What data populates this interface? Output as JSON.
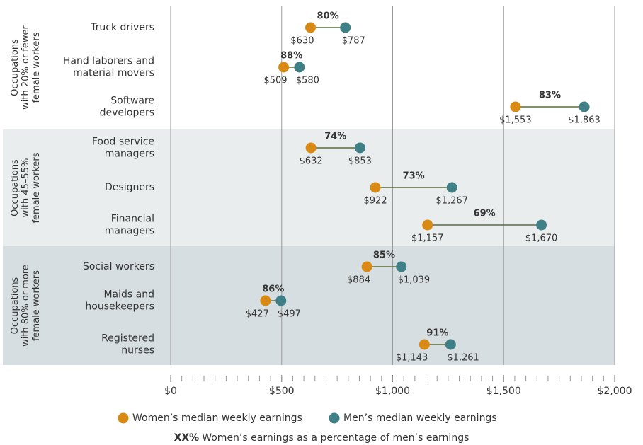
{
  "chart_data": {
    "type": "dumbbell",
    "categories": [
      [
        "Truck drivers"
      ],
      [
        "Hand laborers and",
        "material movers"
      ],
      [
        "Software",
        "developers"
      ],
      [
        "Food service",
        "managers"
      ],
      [
        "Designers"
      ],
      [
        "Financial",
        "managers"
      ],
      [
        "Social workers"
      ],
      [
        "Maids and",
        "housekeepers"
      ],
      [
        "Registered",
        "nurses"
      ]
    ],
    "groups": [
      {
        "label": [
          "Occupations",
          "with 20% or fewer",
          "female workers"
        ],
        "color": "#ffffff"
      },
      {
        "label": [
          "Occupations",
          "with 45–55%",
          "female workers"
        ],
        "color": "#e9edee"
      },
      {
        "label": [
          "Occupations",
          "with 80% or more",
          "female workers"
        ],
        "color": "#d6dee1"
      }
    ],
    "series": [
      {
        "name": "Women’s median weekly earnings",
        "color": "#d98a14",
        "values": [
          630,
          509,
          1553,
          632,
          922,
          1157,
          884,
          427,
          1143
        ],
        "value_labels": [
          "$630",
          "$509",
          "$1,553",
          "$632",
          "$922",
          "$1,157",
          "$884",
          "$427",
          "$1,143"
        ]
      },
      {
        "name": "Men’s median weekly earnings",
        "color": "#3f7f86",
        "values": [
          787,
          580,
          1863,
          853,
          1267,
          1670,
          1039,
          497,
          1261
        ],
        "value_labels": [
          "$787",
          "$580",
          "$1,863",
          "$853",
          "$1,267",
          "$1,670",
          "$1,039",
          "$497",
          "$1,261"
        ]
      }
    ],
    "ratio_labels": [
      "80%",
      "88%",
      "83%",
      "74%",
      "73%",
      "69%",
      "85%",
      "86%",
      "91%"
    ],
    "xlim": [
      0,
      2000
    ],
    "xticks": [
      {
        "value": 0,
        "label": "$0"
      },
      {
        "value": 500,
        "label": "$500"
      },
      {
        "value": 1000,
        "label": "$1,000"
      },
      {
        "value": 1500,
        "label": "$1,500"
      },
      {
        "value": 2000,
        "label": "$2,000"
      }
    ],
    "minor_tick_step": 50,
    "grid": true,
    "note_key": "XX%",
    "note": "Women’s earnings as a percentage of men’s earnings"
  }
}
